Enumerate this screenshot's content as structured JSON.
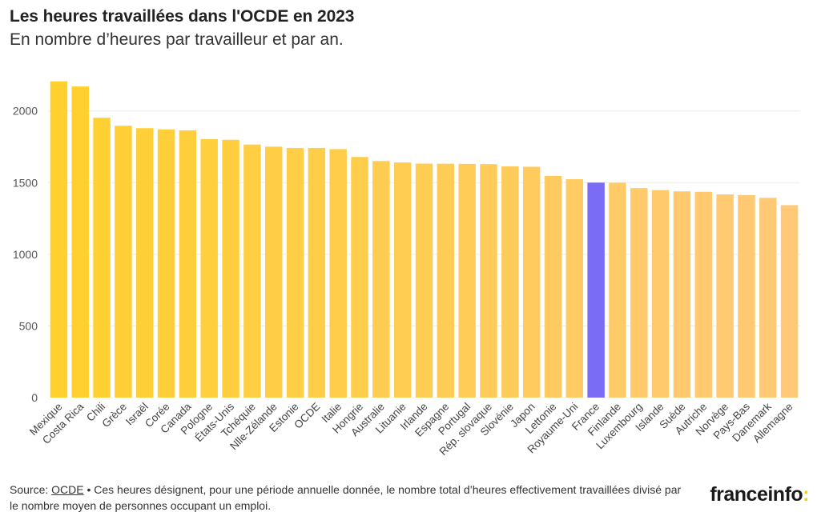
{
  "header": {
    "title": "Les heures travaillées dans l'OCDE en 2023",
    "subtitle": "En nombre d’heures par travailleur et par an."
  },
  "footer": {
    "source_prefix": "Source: ",
    "source_link": "OCDE",
    "source_text": " • Ces heures désignent, pour une période annuelle donnée, le nombre total d’heures effectivement travaillées divisé par le nombre moyen de personnes occupant un emploi."
  },
  "brand": {
    "name": "franceinfo",
    "colon": ":"
  },
  "colors": {
    "gradient_start": "#ffd02e",
    "gradient_end": "#ffc978",
    "highlight": "#7a6cf7",
    "grid": "#ececec",
    "brand_accent": "#ffcc00"
  },
  "chart_data": {
    "type": "bar",
    "title": "Les heures travaillées dans l'OCDE en 2023",
    "subtitle": "En nombre d’heures par travailleur et par an.",
    "xlabel": "",
    "ylabel": "",
    "ylim": [
      0,
      2300
    ],
    "yticks": [
      0,
      500,
      1000,
      1500,
      2000
    ],
    "grid": true,
    "highlight": "France",
    "categories": [
      "Mexique",
      "Costa Rica",
      "Chili",
      "Grèce",
      "Israël",
      "Corée",
      "Canada",
      "Pologne",
      "États-Unis",
      "Tchéquie",
      "Nlle-Zélande",
      "Estonie",
      "OCDE",
      "Italie",
      "Hongrie",
      "Australie",
      "Lituanie",
      "Irlande",
      "Espagne",
      "Portugal",
      "Rép. slovaque",
      "Slovénie",
      "Japon",
      "Lettonie",
      "Royaume-Uni",
      "France",
      "Finlande",
      "Luxembourg",
      "Islande",
      "Suède",
      "Autriche",
      "Norvège",
      "Pays-Bas",
      "Danemark",
      "Allemagne"
    ],
    "values": [
      2207,
      2171,
      1953,
      1897,
      1880,
      1872,
      1865,
      1803,
      1799,
      1766,
      1751,
      1742,
      1742,
      1734,
      1679,
      1651,
      1641,
      1633,
      1632,
      1631,
      1629,
      1614,
      1611,
      1547,
      1524,
      1500,
      1499,
      1462,
      1448,
      1439,
      1436,
      1418,
      1413,
      1394,
      1343
    ]
  }
}
